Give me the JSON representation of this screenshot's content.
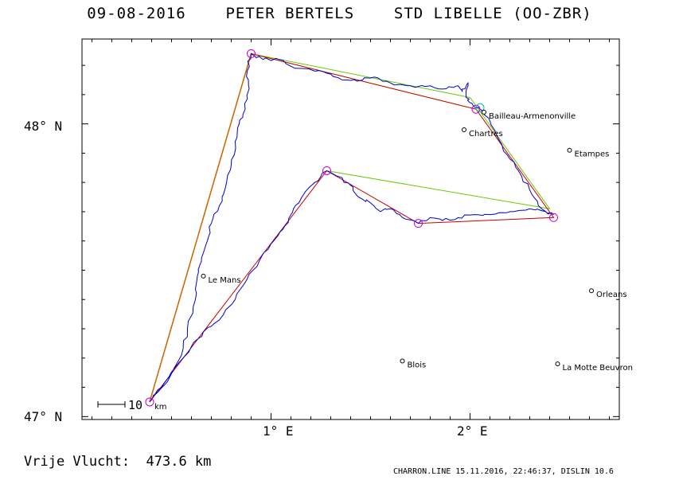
{
  "header": {
    "date": "09-08-2016",
    "pilot": "PETER BERTELS",
    "glider": "STD LIBELLE (OO-ZBR)"
  },
  "axes": {
    "lat_min": 46.99,
    "lat_max": 48.29,
    "lon_min": 0.05,
    "lon_max": 2.75,
    "lat_labels": [
      {
        "value": 48,
        "text": "48° N"
      },
      {
        "value": 47,
        "text": "47° N"
      }
    ],
    "lon_labels": [
      {
        "value": 1,
        "text": "1° E"
      },
      {
        "value": 2,
        "text": "2° E"
      }
    ]
  },
  "scale_bar": {
    "label": "10",
    "unit": "km"
  },
  "cities": [
    {
      "name": "Bailleau-Armenonville",
      "lon": 2.07,
      "lat": 48.04
    },
    {
      "name": "Chartres",
      "lon": 1.97,
      "lat": 47.98
    },
    {
      "name": "Etampes",
      "lon": 2.5,
      "lat": 47.91
    },
    {
      "name": "Le Mans",
      "lon": 0.66,
      "lat": 47.48
    },
    {
      "name": "Orleans",
      "lon": 2.61,
      "lat": 47.43
    },
    {
      "name": "Blois",
      "lon": 1.66,
      "lat": 47.19
    },
    {
      "name": "La Motte Beuvron",
      "lon": 2.44,
      "lat": 47.18
    }
  ],
  "turnpoints": [
    {
      "lon": 0.39,
      "lat": 47.05
    },
    {
      "lon": 0.9,
      "lat": 48.24
    },
    {
      "lon": 2.03,
      "lat": 48.05
    },
    {
      "lon": 2.42,
      "lat": 47.68
    },
    {
      "lon": 1.74,
      "lat": 47.66
    },
    {
      "lon": 1.28,
      "lat": 47.84
    },
    {
      "lon": 0.39,
      "lat": 47.05
    }
  ],
  "optimized_legs": [
    {
      "lon": 2.03,
      "lat": 48.05
    },
    {
      "lon": 0.9,
      "lat": 48.24
    },
    {
      "lon": 0.39,
      "lat": 47.05
    }
  ],
  "declared_route": [
    {
      "lon": 0.39,
      "lat": 47.05
    },
    {
      "lon": 0.9,
      "lat": 48.24
    },
    {
      "lon": 2.0,
      "lat": 48.09
    },
    {
      "lon": 2.4,
      "lat": 47.71
    },
    {
      "lon": 1.28,
      "lat": 47.84
    }
  ],
  "track": [
    {
      "lon": 0.39,
      "lat": 47.05
    },
    {
      "lon": 0.44,
      "lat": 47.09
    },
    {
      "lon": 0.48,
      "lat": 47.12
    },
    {
      "lon": 0.55,
      "lat": 47.21
    },
    {
      "lon": 0.58,
      "lat": 47.3
    },
    {
      "lon": 0.62,
      "lat": 47.4
    },
    {
      "lon": 0.63,
      "lat": 47.48
    },
    {
      "lon": 0.65,
      "lat": 47.53
    },
    {
      "lon": 0.68,
      "lat": 47.6
    },
    {
      "lon": 0.7,
      "lat": 47.66
    },
    {
      "lon": 0.74,
      "lat": 47.72
    },
    {
      "lon": 0.77,
      "lat": 47.78
    },
    {
      "lon": 0.8,
      "lat": 47.86
    },
    {
      "lon": 0.82,
      "lat": 47.94
    },
    {
      "lon": 0.84,
      "lat": 48.0
    },
    {
      "lon": 0.87,
      "lat": 48.05
    },
    {
      "lon": 0.89,
      "lat": 48.12
    },
    {
      "lon": 0.88,
      "lat": 48.18
    },
    {
      "lon": 0.9,
      "lat": 48.24
    },
    {
      "lon": 0.96,
      "lat": 48.22
    },
    {
      "lon": 1.04,
      "lat": 48.22
    },
    {
      "lon": 1.12,
      "lat": 48.19
    },
    {
      "lon": 1.22,
      "lat": 48.18
    },
    {
      "lon": 1.3,
      "lat": 48.17
    },
    {
      "lon": 1.38,
      "lat": 48.15
    },
    {
      "lon": 1.46,
      "lat": 48.15
    },
    {
      "lon": 1.52,
      "lat": 48.16
    },
    {
      "lon": 1.6,
      "lat": 48.14
    },
    {
      "lon": 1.7,
      "lat": 48.13
    },
    {
      "lon": 1.8,
      "lat": 48.13
    },
    {
      "lon": 1.88,
      "lat": 48.12
    },
    {
      "lon": 1.94,
      "lat": 48.13
    },
    {
      "lon": 1.96,
      "lat": 48.11
    },
    {
      "lon": 1.99,
      "lat": 48.14
    },
    {
      "lon": 1.98,
      "lat": 48.09
    },
    {
      "lon": 2.01,
      "lat": 48.07
    },
    {
      "lon": 2.05,
      "lat": 48.05
    },
    {
      "lon": 2.1,
      "lat": 48.01
    },
    {
      "lon": 2.15,
      "lat": 47.94
    },
    {
      "lon": 2.2,
      "lat": 47.88
    },
    {
      "lon": 2.26,
      "lat": 47.82
    },
    {
      "lon": 2.31,
      "lat": 47.76
    },
    {
      "lon": 2.36,
      "lat": 47.71
    },
    {
      "lon": 2.42,
      "lat": 47.69
    },
    {
      "lon": 2.38,
      "lat": 47.7
    },
    {
      "lon": 2.3,
      "lat": 47.71
    },
    {
      "lon": 2.2,
      "lat": 47.7
    },
    {
      "lon": 2.1,
      "lat": 47.69
    },
    {
      "lon": 2.02,
      "lat": 47.69
    },
    {
      "lon": 1.94,
      "lat": 47.68
    },
    {
      "lon": 1.86,
      "lat": 47.67
    },
    {
      "lon": 1.8,
      "lat": 47.68
    },
    {
      "lon": 1.74,
      "lat": 47.66
    },
    {
      "lon": 1.66,
      "lat": 47.68
    },
    {
      "lon": 1.6,
      "lat": 47.71
    },
    {
      "lon": 1.55,
      "lat": 47.7
    },
    {
      "lon": 1.5,
      "lat": 47.73
    },
    {
      "lon": 1.44,
      "lat": 47.75
    },
    {
      "lon": 1.4,
      "lat": 47.79
    },
    {
      "lon": 1.34,
      "lat": 47.82
    },
    {
      "lon": 1.28,
      "lat": 47.84
    },
    {
      "lon": 1.22,
      "lat": 47.8
    },
    {
      "lon": 1.14,
      "lat": 47.73
    },
    {
      "lon": 1.1,
      "lat": 47.69
    },
    {
      "lon": 1.06,
      "lat": 47.64
    },
    {
      "lon": 1.0,
      "lat": 47.59
    },
    {
      "lon": 0.94,
      "lat": 47.53
    },
    {
      "lon": 0.88,
      "lat": 47.47
    },
    {
      "lon": 0.82,
      "lat": 47.4
    },
    {
      "lon": 0.74,
      "lat": 47.33
    },
    {
      "lon": 0.66,
      "lat": 47.29
    },
    {
      "lon": 0.6,
      "lat": 47.24
    },
    {
      "lon": 0.52,
      "lat": 47.17
    },
    {
      "lon": 0.45,
      "lat": 47.1
    },
    {
      "lon": 0.41,
      "lat": 47.07
    }
  ],
  "footer": {
    "distance_text": "Vrije Vlucht:  473.6 km",
    "program_info": "CHARRON.LINE 15.11.2016, 22:46:37, DISLIN 10.6"
  },
  "colors": {
    "track": "#0000cc",
    "declared": "#cc0000",
    "optimized": "#66cc00",
    "start_leg": "#cc6600",
    "turnpoint": "#cc00cc",
    "start_marker": "#00bbbb"
  }
}
